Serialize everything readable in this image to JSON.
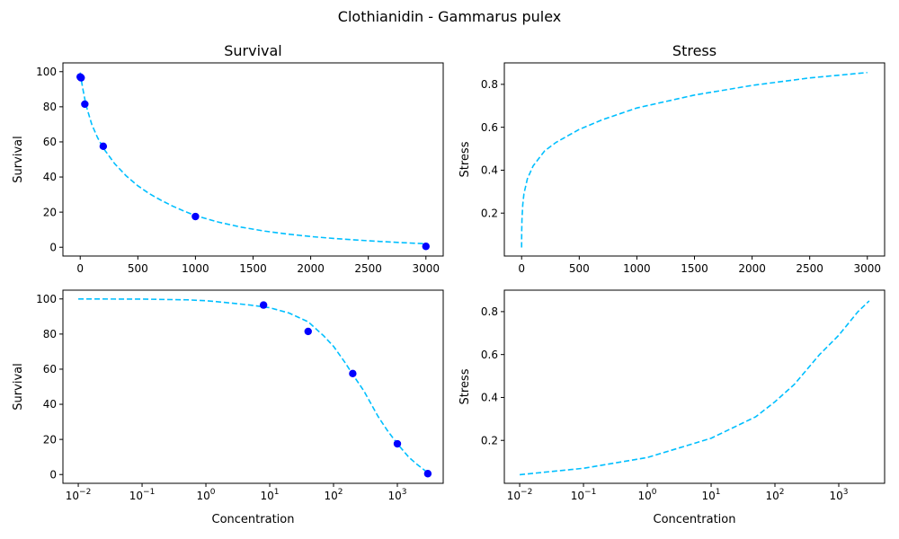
{
  "figure": {
    "title": "Clothianidin - Gammarus pulex",
    "colors": {
      "curve": "#00bfff",
      "points": "#0000ff",
      "frame": "#000000"
    }
  },
  "chart_data": [
    {
      "id": "survival-linear",
      "type": "line",
      "title": "Survival",
      "xlabel": "",
      "ylabel": "Survival",
      "xscale": "linear",
      "xlim": [
        -150,
        3150
      ],
      "ylim": [
        -5,
        105
      ],
      "xticks": [
        0,
        500,
        1000,
        1500,
        2000,
        2500,
        3000
      ],
      "xtick_labels": [
        "0",
        "500",
        "1000",
        "1500",
        "2000",
        "2500",
        "3000"
      ],
      "yticks": [
        0,
        20,
        40,
        60,
        80,
        100
      ],
      "ytick_labels": [
        "0",
        "20",
        "40",
        "60",
        "80",
        "100"
      ],
      "grid": false,
      "series": [
        {
          "kind": "line",
          "style": "dashed",
          "color": "#00bfff",
          "x": [
            0,
            10,
            25,
            50,
            100,
            150,
            200,
            300,
            400,
            500,
            600,
            700,
            800,
            900,
            1000,
            1200,
            1400,
            1600,
            1800,
            2000,
            2200,
            2400,
            2600,
            2800,
            3000
          ],
          "y": [
            99.5,
            95,
            89.5,
            81,
            70,
            62.5,
            56.5,
            47.5,
            40.6,
            35,
            30.5,
            26.8,
            23.5,
            20.6,
            18,
            14.3,
            11.4,
            9.2,
            7.5,
            6.1,
            5,
            4.1,
            3.3,
            2.6,
            2
          ]
        },
        {
          "kind": "scatter",
          "color": "#0000ff",
          "x": [
            0,
            8,
            40,
            200,
            1000,
            3000
          ],
          "y": [
            97,
            96.5,
            81.5,
            57.5,
            17.5,
            0.5
          ]
        }
      ]
    },
    {
      "id": "stress-linear",
      "type": "line",
      "title": "Stress",
      "xlabel": "",
      "ylabel": "Stress",
      "xscale": "linear",
      "xlim": [
        -150,
        3150
      ],
      "ylim": [
        0.0,
        0.9
      ],
      "xticks": [
        0,
        500,
        1000,
        1500,
        2000,
        2500,
        3000
      ],
      "xtick_labels": [
        "0",
        "500",
        "1000",
        "1500",
        "2000",
        "2500",
        "3000"
      ],
      "yticks": [
        0.2,
        0.4,
        0.6,
        0.8
      ],
      "ytick_labels": [
        "0.2",
        "0.4",
        "0.6",
        "0.8"
      ],
      "grid": false,
      "series": [
        {
          "kind": "line",
          "style": "dashed",
          "color": "#00bfff",
          "x": [
            0.01,
            0.2,
            1,
            3,
            10,
            20,
            50,
            100,
            200,
            300,
            400,
            500,
            700,
            1000,
            1500,
            2000,
            2500,
            3000
          ],
          "y": [
            0.04,
            0.08,
            0.12,
            0.17,
            0.24,
            0.29,
            0.36,
            0.42,
            0.49,
            0.53,
            0.56,
            0.59,
            0.635,
            0.69,
            0.75,
            0.795,
            0.83,
            0.855
          ]
        }
      ]
    },
    {
      "id": "survival-log",
      "type": "line",
      "title": "",
      "xlabel": "Concentration",
      "ylabel": "Survival",
      "xscale": "log",
      "xlim": [
        0.00575,
        5230
      ],
      "ylim": [
        -5,
        105
      ],
      "xticks": [
        0.01,
        0.1,
        1,
        10,
        100,
        1000
      ],
      "xtick_labels": [
        [
          "10",
          "−2"
        ],
        [
          "10",
          "−1"
        ],
        [
          "10",
          "0"
        ],
        [
          "10",
          "1"
        ],
        [
          "10",
          "2"
        ],
        [
          "10",
          "3"
        ]
      ],
      "yticks": [
        0,
        20,
        40,
        60,
        80,
        100
      ],
      "ytick_labels": [
        "0",
        "20",
        "40",
        "60",
        "80",
        "100"
      ],
      "grid": false,
      "series": [
        {
          "kind": "line",
          "style": "dashed",
          "color": "#00bfff",
          "x": [
            0.01,
            0.1,
            0.5,
            1,
            2,
            5,
            10,
            20,
            40,
            70,
            100,
            150,
            200,
            300,
            500,
            700,
            1000,
            1500,
            2000,
            3000
          ],
          "y": [
            100,
            99.9,
            99.5,
            99,
            98,
            96.5,
            95,
            92,
            87,
            79,
            73,
            64,
            57,
            47.5,
            33,
            25,
            17.5,
            10,
            6,
            1
          ]
        },
        {
          "kind": "scatter",
          "color": "#0000ff",
          "x": [
            8,
            40,
            200,
            1000,
            3000
          ],
          "y": [
            96.5,
            81.5,
            57.5,
            17.5,
            0.5
          ]
        }
      ]
    },
    {
      "id": "stress-log",
      "type": "line",
      "title": "",
      "xlabel": "Concentration",
      "ylabel": "Stress",
      "xscale": "log",
      "xlim": [
        0.00575,
        5230
      ],
      "ylim": [
        0.0,
        0.9
      ],
      "xticks": [
        0.01,
        0.1,
        1,
        10,
        100,
        1000
      ],
      "xtick_labels": [
        [
          "10",
          "−2"
        ],
        [
          "10",
          "−1"
        ],
        [
          "10",
          "0"
        ],
        [
          "10",
          "1"
        ],
        [
          "10",
          "2"
        ],
        [
          "10",
          "3"
        ]
      ],
      "yticks": [
        0.2,
        0.4,
        0.6,
        0.8
      ],
      "ytick_labels": [
        "0.2",
        "0.4",
        "0.6",
        "0.8"
      ],
      "grid": false,
      "series": [
        {
          "kind": "line",
          "style": "dashed",
          "color": "#00bfff",
          "x": [
            0.01,
            0.1,
            1,
            10,
            50,
            100,
            200,
            500,
            1000,
            2000,
            3000
          ],
          "y": [
            0.04,
            0.07,
            0.12,
            0.21,
            0.31,
            0.38,
            0.46,
            0.6,
            0.69,
            0.8,
            0.85
          ]
        }
      ]
    }
  ]
}
